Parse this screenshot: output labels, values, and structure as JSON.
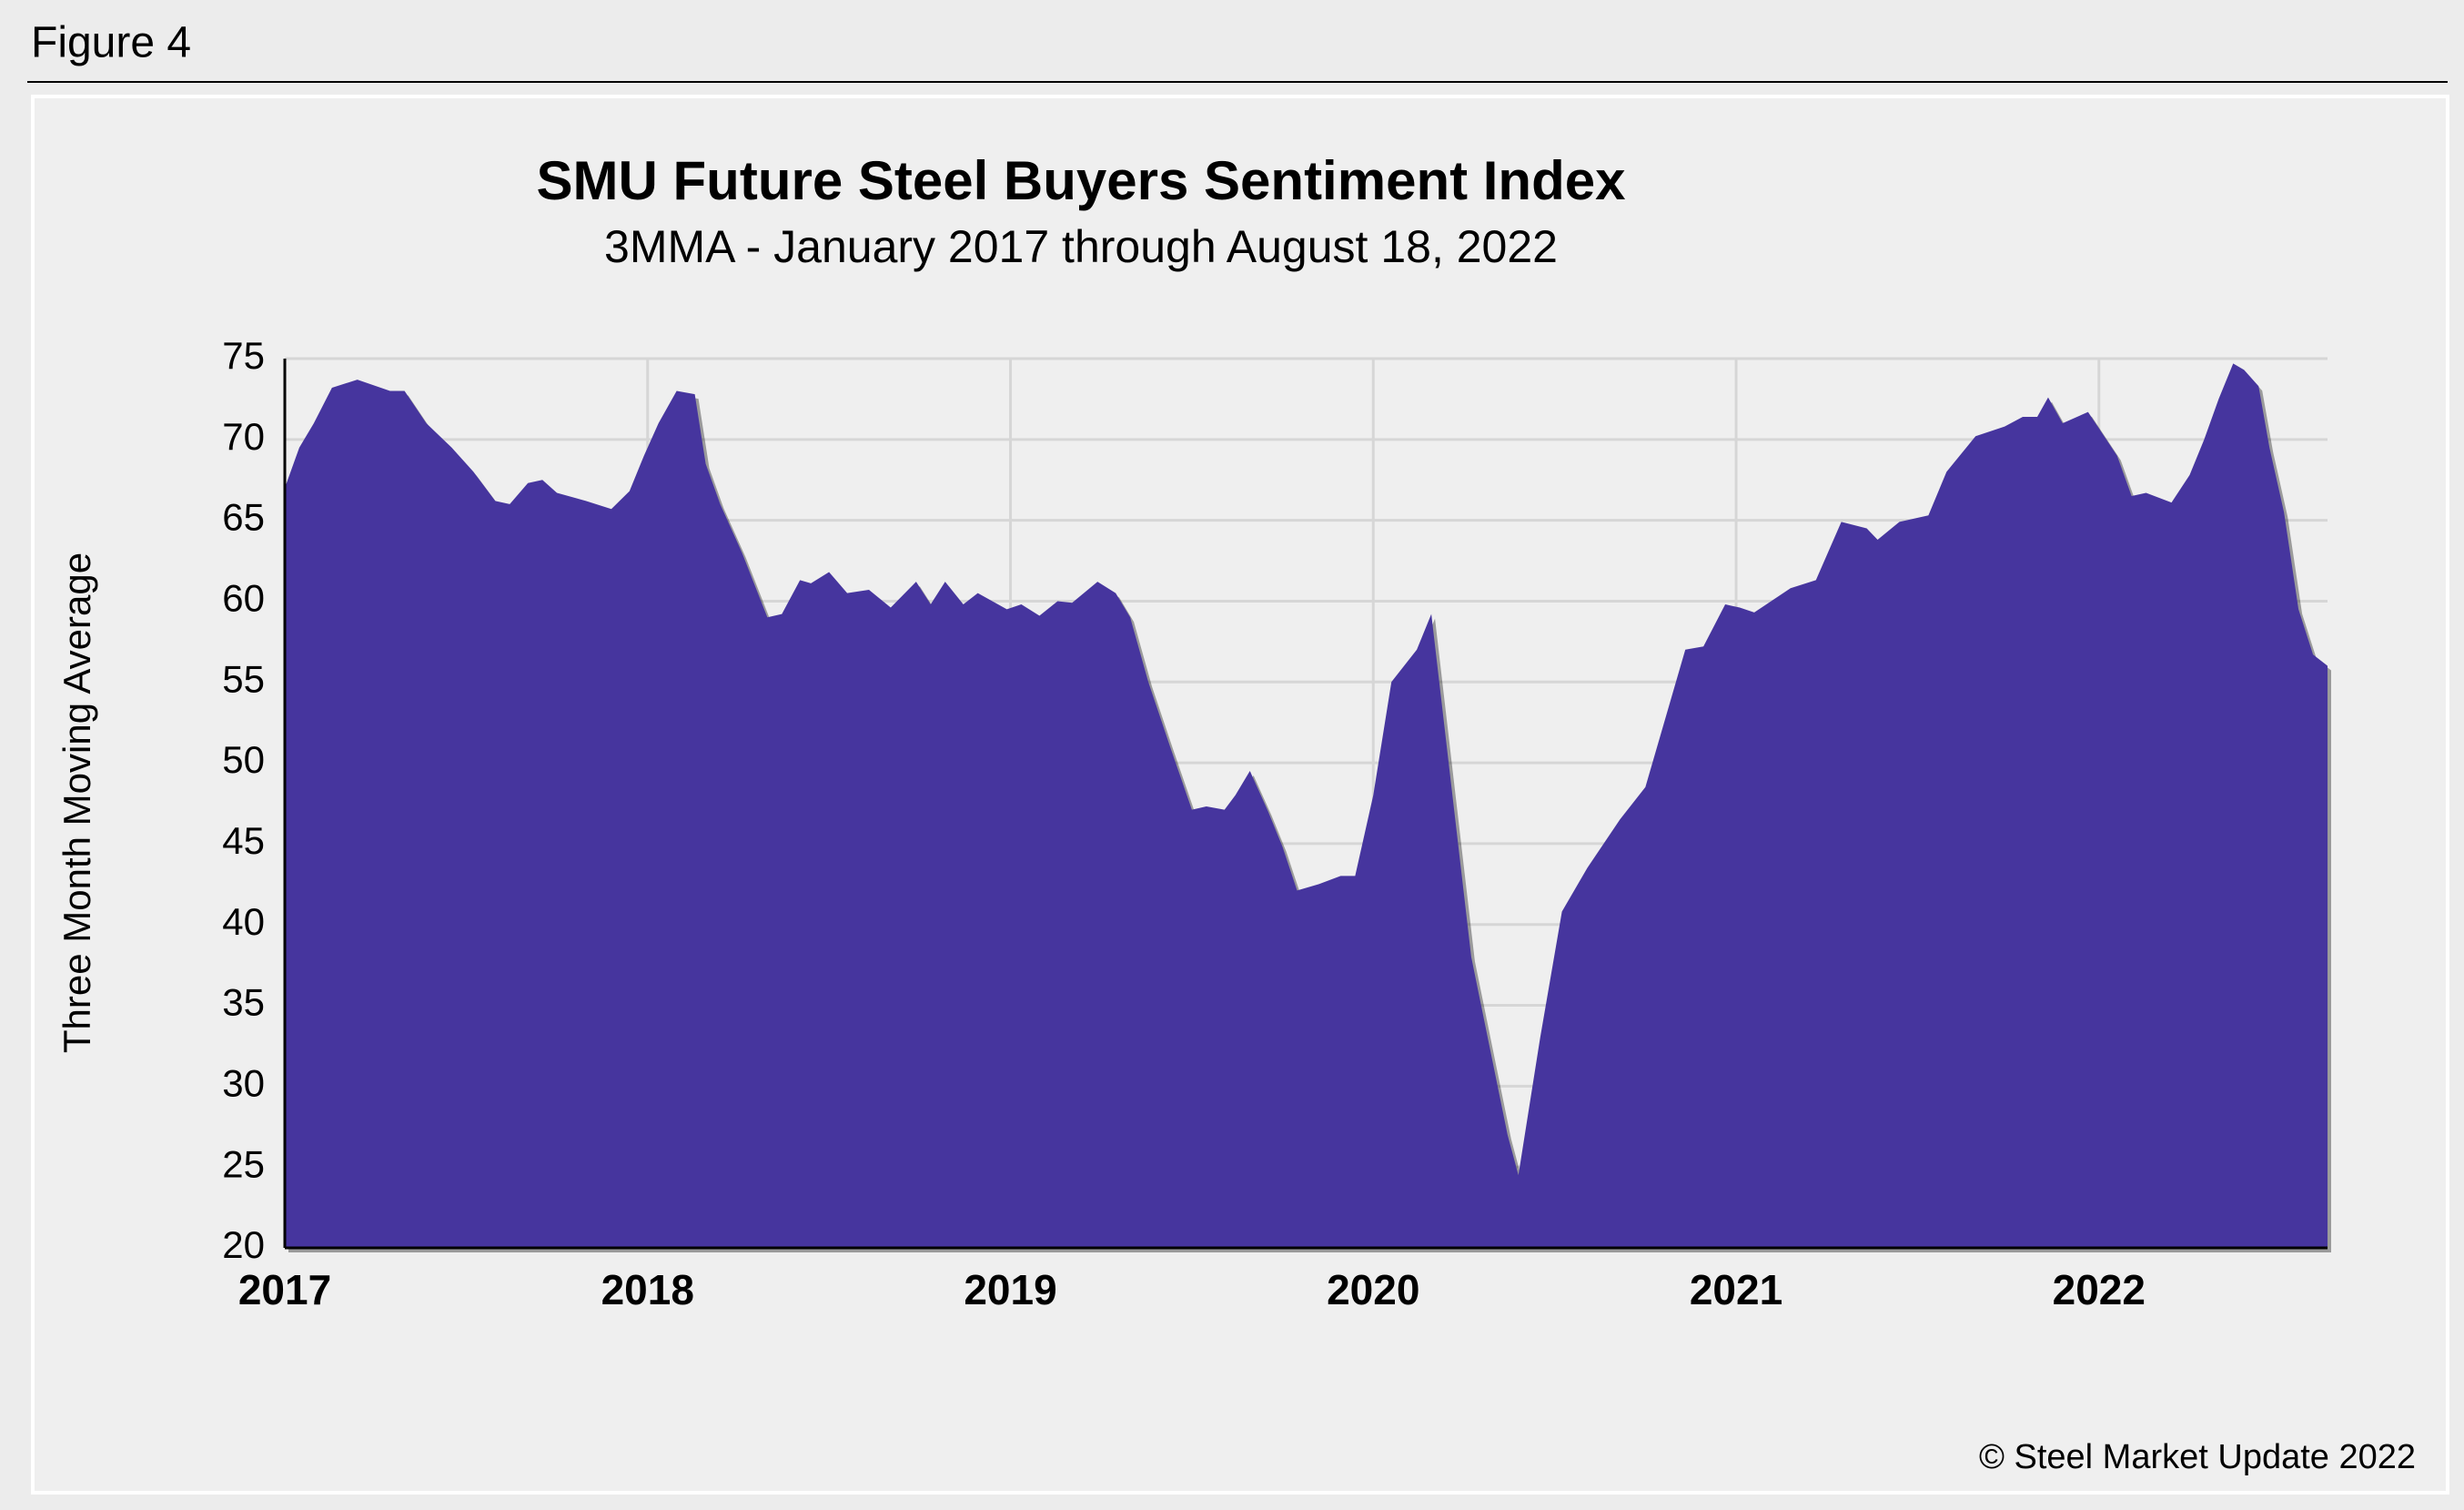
{
  "chart_data": {
    "type": "area",
    "figure_label": "Figure 4",
    "title": "SMU Future Steel Buyers Sentiment Index",
    "subtitle": "3MMA - January 2017 through August 18, 2022",
    "y_label": "Three Month Moving Average",
    "copyright": "© Steel Market Update 2022",
    "color": "#46359e",
    "grid": true,
    "xlim": [
      2017,
      2022.63
    ],
    "xticks": [
      2017,
      2018,
      2019,
      2020,
      2021,
      2022
    ],
    "ylim": [
      20,
      75
    ],
    "yticks": [
      20,
      25,
      30,
      35,
      40,
      45,
      50,
      55,
      60,
      65,
      70,
      75
    ],
    "x": [
      2017.0,
      2017.04,
      2017.08,
      2017.13,
      2017.2,
      2017.29,
      2017.33,
      2017.39,
      2017.46,
      2017.52,
      2017.58,
      2017.62,
      2017.67,
      2017.71,
      2017.75,
      2017.83,
      2017.9,
      2017.95,
      2017.99,
      2018.03,
      2018.08,
      2018.13,
      2018.16,
      2018.2,
      2018.26,
      2018.33,
      2018.37,
      2018.42,
      2018.45,
      2018.5,
      2018.55,
      2018.61,
      2018.67,
      2018.74,
      2018.78,
      2018.82,
      2018.87,
      2018.91,
      2018.99,
      2019.03,
      2019.08,
      2019.13,
      2019.17,
      2019.24,
      2019.29,
      2019.33,
      2019.38,
      2019.44,
      2019.5,
      2019.54,
      2019.59,
      2019.62,
      2019.66,
      2019.71,
      2019.75,
      2019.79,
      2019.85,
      2019.91,
      2019.95,
      2020.0,
      2020.05,
      2020.12,
      2020.16,
      2020.27,
      2020.37,
      2020.4,
      2020.46,
      2020.52,
      2020.59,
      2020.68,
      2020.75,
      2020.86,
      2020.91,
      2020.97,
      2021.01,
      2021.05,
      2021.15,
      2021.22,
      2021.29,
      2021.36,
      2021.39,
      2021.45,
      2021.53,
      2021.58,
      2021.66,
      2021.74,
      2021.79,
      2021.83,
      2021.86,
      2021.9,
      2021.97,
      2022.05,
      2022.09,
      2022.13,
      2022.2,
      2022.25,
      2022.29,
      2022.33,
      2022.37,
      2022.4,
      2022.44,
      2022.47,
      2022.51,
      2022.55,
      2022.59,
      2022.63
    ],
    "values": [
      67,
      69.5,
      71,
      73.2,
      73.7,
      73,
      73,
      71,
      69.5,
      68,
      66.2,
      66,
      67.3,
      67.5,
      66.7,
      66.2,
      65.7,
      66.8,
      69,
      71,
      73,
      72.8,
      68.5,
      66,
      63,
      59,
      59.2,
      61.3,
      61.1,
      61.8,
      60.5,
      60.7,
      59.6,
      61.2,
      59.8,
      61.2,
      59.8,
      60.5,
      59.5,
      59.8,
      59.1,
      60,
      59.9,
      61.2,
      60.5,
      59,
      55,
      51,
      47.1,
      47.3,
      47.1,
      48,
      49.5,
      47,
      44.8,
      42.1,
      42.5,
      43,
      43,
      48,
      55,
      57,
      59.2,
      38,
      27,
      24.5,
      33,
      40.8,
      43.5,
      46.5,
      48.5,
      57,
      57.2,
      59.8,
      59.6,
      59.3,
      60.8,
      61.3,
      64.9,
      64.5,
      63.8,
      64.9,
      65.3,
      68,
      70.2,
      70.8,
      71.4,
      71.4,
      72.6,
      71,
      71.7,
      69,
      66.5,
      66.7,
      66.1,
      67.8,
      70,
      72.5,
      74.7,
      74.3,
      73.3,
      69.5,
      65.5,
      59.5,
      56.7,
      56
    ]
  }
}
